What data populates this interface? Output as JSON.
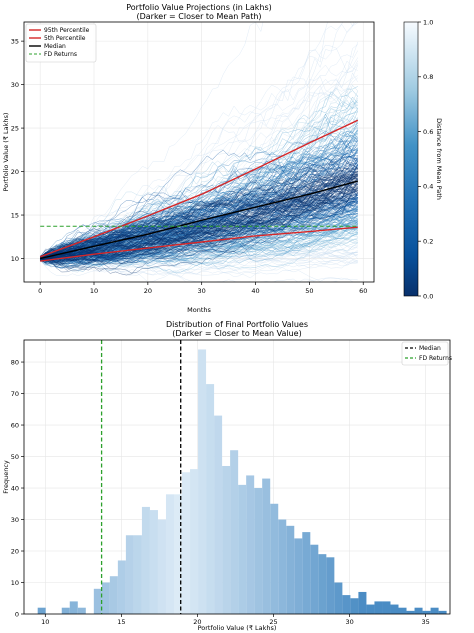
{
  "chart_data": [
    {
      "type": "line",
      "title": "Portfolio Value Projections (in Lakhs)",
      "subtitle": "(Darker = Closer to Mean Path)",
      "xlabel": "Months",
      "ylabel": "Portfolio Value (₹ Lakhs)",
      "xlim": [
        -3,
        62
      ],
      "ylim": [
        7.3,
        37.2
      ],
      "xticks": [
        0,
        10,
        20,
        30,
        40,
        50,
        60
      ],
      "yticks": [
        10,
        15,
        20,
        25,
        30,
        35
      ],
      "grid": true,
      "legend_position": "top-left",
      "series": [
        {
          "name": "95th Percentile",
          "color": "#d62728",
          "style": "solid",
          "x": [
            0,
            10,
            20,
            30,
            40,
            50,
            59
          ],
          "y": [
            10.2,
            12.5,
            14.9,
            17.4,
            20.3,
            23.3,
            25.9
          ]
        },
        {
          "name": "5th Percentile",
          "color": "#d62728",
          "style": "solid",
          "x": [
            0,
            10,
            20,
            30,
            40,
            50,
            59
          ],
          "y": [
            9.7,
            10.5,
            11.2,
            11.9,
            12.6,
            13.1,
            13.6
          ]
        },
        {
          "name": "Median",
          "color": "#000000",
          "style": "solid",
          "x": [
            0,
            10,
            20,
            30,
            40,
            50,
            59
          ],
          "y": [
            10.0,
            11.4,
            12.8,
            14.4,
            15.9,
            17.4,
            18.9
          ]
        },
        {
          "name": "FD Returns",
          "color": "#2ca02c",
          "style": "dashed",
          "x": [
            0,
            59
          ],
          "y": [
            13.7,
            13.7
          ]
        }
      ],
      "simulated_paths": {
        "count": 1000,
        "start": 10.0,
        "months": 59,
        "colormap": "Blues_r"
      },
      "colorbar": {
        "label": "Distance from Mean Path",
        "min": 0.0,
        "max": 1.0,
        "ticks": [
          0.0,
          0.2,
          0.4,
          0.6,
          0.8,
          1.0
        ],
        "tick_labels": [
          "0.0",
          "0.2",
          "0.4",
          "0.6",
          "0.8",
          "1.0"
        ]
      }
    },
    {
      "type": "bar",
      "title": "Distribution of Final Portfolio Values",
      "subtitle": "(Darker = Closer to Mean Value)",
      "xlabel": "Portfolio Value (₹ Lakhs)",
      "ylabel": "Frequency",
      "xlim": [
        8.6,
        36.6
      ],
      "ylim": [
        0,
        87
      ],
      "xticks": [
        10,
        15,
        20,
        25,
        30,
        35
      ],
      "yticks": [
        0,
        10,
        20,
        30,
        40,
        50,
        60,
        70,
        80
      ],
      "grid": true,
      "legend_position": "top-right",
      "bin_start": 9.5,
      "bin_width": 0.527,
      "values": [
        2,
        0,
        0,
        2,
        4,
        2,
        0,
        8,
        10,
        12,
        17,
        25,
        25,
        34,
        33,
        30,
        38,
        38,
        45,
        46,
        84,
        73,
        63,
        47,
        52,
        41,
        44,
        40,
        43,
        35,
        30,
        28,
        24,
        26,
        22,
        19,
        18,
        10,
        6,
        5,
        7,
        3,
        4,
        4,
        3,
        2,
        1,
        2,
        1,
        2,
        1,
        0,
        1,
        1,
        1,
        0,
        1,
        0,
        1
      ],
      "vlines": [
        {
          "name": "Median",
          "x": 18.9,
          "color": "#000000",
          "style": "dashed"
        },
        {
          "name": "FD Returns",
          "x": 13.7,
          "color": "#2ca02c",
          "style": "dashed"
        }
      ]
    }
  ]
}
